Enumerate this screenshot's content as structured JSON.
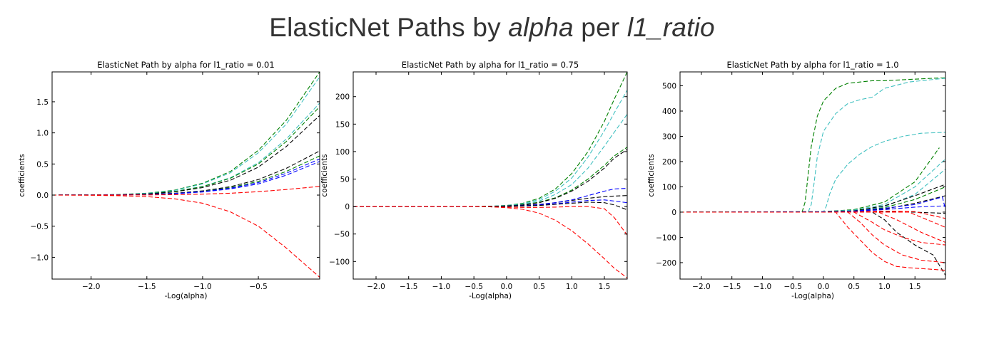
{
  "super_title": {
    "prefix": "ElasticNet Paths by ",
    "italic1": "alpha",
    "middle": " per ",
    "italic2": "l1_ratio"
  },
  "chart_data": [
    {
      "type": "line",
      "title": "ElasticNet Path by alpha for l1_ratio = 0.01",
      "xlabel": "-Log(alpha)",
      "ylabel": "coefficients",
      "xlim": [
        -2.35,
        0.05
      ],
      "ylim": [
        -1.35,
        1.98
      ],
      "xticks": [
        -2.0,
        -1.5,
        -1.0,
        -0.5
      ],
      "xticklabels": [
        "−2.0",
        "−1.5",
        "−1.0",
        "−0.5"
      ],
      "yticks": [
        -1.0,
        -0.5,
        0.0,
        0.5,
        1.0,
        1.5
      ],
      "yticklabels": [
        "−1.0",
        "−0.5",
        "0.0",
        "0.5",
        "1.0",
        "1.5"
      ],
      "x": [
        -2.35,
        -2.0,
        -1.75,
        -1.5,
        -1.25,
        -1.0,
        -0.75,
        -0.5,
        -0.25,
        0.05
      ],
      "series": [
        {
          "color": "#008000",
          "values": [
            0,
            0.003,
            0.01,
            0.03,
            0.08,
            0.19,
            0.38,
            0.72,
            1.2,
            1.98
          ]
        },
        {
          "color": "#40c0c0",
          "values": [
            0,
            0.003,
            0.009,
            0.027,
            0.075,
            0.18,
            0.36,
            0.68,
            1.14,
            1.9
          ]
        },
        {
          "color": "#40c0c0",
          "values": [
            0,
            0.002,
            0.007,
            0.02,
            0.06,
            0.14,
            0.28,
            0.52,
            0.9,
            1.48
          ]
        },
        {
          "color": "#008000",
          "values": [
            0,
            0.002,
            0.007,
            0.02,
            0.058,
            0.135,
            0.27,
            0.5,
            0.86,
            1.42
          ]
        },
        {
          "color": "#000000",
          "values": [
            0,
            0.002,
            0.006,
            0.018,
            0.052,
            0.12,
            0.24,
            0.45,
            0.78,
            1.28
          ]
        },
        {
          "color": "#000000",
          "values": [
            0,
            0.001,
            0.004,
            0.011,
            0.03,
            0.068,
            0.135,
            0.25,
            0.43,
            0.71
          ]
        },
        {
          "color": "#008000",
          "values": [
            0,
            0.001,
            0.0035,
            0.01,
            0.027,
            0.06,
            0.12,
            0.22,
            0.38,
            0.63
          ]
        },
        {
          "color": "#0000ff",
          "values": [
            0,
            0.001,
            0.003,
            0.009,
            0.025,
            0.056,
            0.11,
            0.2,
            0.35,
            0.58
          ]
        },
        {
          "color": "#0000ff",
          "values": [
            0,
            0.001,
            0.003,
            0.008,
            0.022,
            0.05,
            0.1,
            0.18,
            0.32,
            0.54
          ]
        },
        {
          "color": "#ff0000",
          "values": [
            0,
            0,
            0.001,
            0.003,
            0.007,
            0.015,
            0.03,
            0.055,
            0.09,
            0.14
          ]
        },
        {
          "color": "#ff0000",
          "values": [
            0,
            -0.003,
            -0.01,
            -0.025,
            -0.06,
            -0.13,
            -0.27,
            -0.5,
            -0.85,
            -1.32
          ]
        }
      ]
    },
    {
      "type": "line",
      "title": "ElasticNet Path by alpha for l1_ratio = 0.75",
      "xlabel": "-Log(alpha)",
      "ylabel": "coefficients",
      "xlim": [
        -2.35,
        1.85
      ],
      "ylim": [
        -132,
        245
      ],
      "xticks": [
        -2.0,
        -1.5,
        -1.0,
        -0.5,
        0.0,
        0.5,
        1.0,
        1.5
      ],
      "xticklabels": [
        "−2.0",
        "−1.5",
        "−1.0",
        "−0.5",
        "0.0",
        "0.5",
        "1.0",
        "1.5"
      ],
      "yticks": [
        -100,
        -50,
        0,
        50,
        100,
        150,
        200
      ],
      "yticklabels": [
        "−100",
        "−50",
        "0",
        "50",
        "100",
        "150",
        "200"
      ],
      "x": [
        -2.35,
        -0.5,
        -0.25,
        0.0,
        0.25,
        0.5,
        0.75,
        1.0,
        1.25,
        1.5,
        1.65,
        1.85
      ],
      "series": [
        {
          "color": "#008000",
          "values": [
            0,
            0,
            0.5,
            2,
            6,
            15,
            32,
            60,
            100,
            155,
            195,
            245
          ]
        },
        {
          "color": "#40c0c0",
          "values": [
            0,
            0,
            0.5,
            2,
            5,
            13,
            28,
            52,
            90,
            138,
            170,
            212
          ]
        },
        {
          "color": "#40c0c0",
          "values": [
            0,
            0,
            0.4,
            1.5,
            4,
            10,
            22,
            40,
            70,
            110,
            135,
            168
          ]
        },
        {
          "color": "#008000",
          "values": [
            0,
            0,
            0.3,
            1.2,
            3,
            8,
            16,
            30,
            50,
            75,
            92,
            108
          ]
        },
        {
          "color": "#000000",
          "values": [
            0,
            0,
            0.3,
            1,
            3,
            7,
            15,
            28,
            46,
            70,
            88,
            104
          ]
        },
        {
          "color": "#000000",
          "values": [
            0,
            0,
            0.2,
            0.8,
            2,
            4,
            7,
            11,
            15,
            18,
            19,
            20
          ]
        },
        {
          "color": "#0000ff",
          "values": [
            0,
            0,
            0.2,
            0.6,
            1.5,
            3.5,
            7,
            12,
            20,
            28,
            32,
            33
          ]
        },
        {
          "color": "#0000ff",
          "values": [
            0,
            0,
            0.2,
            0.5,
            1.2,
            2.5,
            5,
            8,
            11,
            12,
            10,
            7
          ]
        },
        {
          "color": "#000000",
          "values": [
            0,
            0,
            0.1,
            0.5,
            1,
            2,
            4,
            6,
            8,
            7,
            3,
            -6
          ]
        },
        {
          "color": "#ff0000",
          "values": [
            0,
            0,
            -0.5,
            -1,
            -1.5,
            -1.5,
            -1,
            0,
            0,
            -4,
            -20,
            -52
          ]
        },
        {
          "color": "#ff0000",
          "values": [
            0,
            0,
            -0.5,
            -2,
            -5,
            -12,
            -25,
            -44,
            -68,
            -95,
            -112,
            -130
          ]
        }
      ]
    },
    {
      "type": "line",
      "title": "ElasticNet Path by alpha for l1_ratio = 1.0",
      "xlabel": "-Log(alpha)",
      "ylabel": "coefficients",
      "xlim": [
        -2.35,
        2.0
      ],
      "ylim": [
        -265,
        555
      ],
      "xticks": [
        -2.0,
        -1.5,
        -1.0,
        -0.5,
        0.0,
        0.5,
        1.0,
        1.5
      ],
      "xticklabels": [
        "−2.0",
        "−1.5",
        "−1.0",
        "−0.5",
        "0.0",
        "0.5",
        "1.0",
        "1.5"
      ],
      "yticks": [
        -200,
        -100,
        0,
        100,
        200,
        300,
        400,
        500
      ],
      "yticklabels": [
        "−200",
        "−100",
        "0",
        "100",
        "200",
        "300",
        "400",
        "500"
      ],
      "series": [
        {
          "color": "#008000",
          "x": [
            -2.35,
            -0.35,
            -0.3,
            -0.25,
            -0.2,
            -0.1,
            0.0,
            0.2,
            0.4,
            0.6,
            0.8,
            1.0,
            1.4,
            1.8,
            2.0
          ],
          "values": [
            0,
            0,
            40,
            150,
            260,
            380,
            440,
            490,
            510,
            515,
            520,
            520,
            525,
            530,
            532
          ]
        },
        {
          "color": "#40c0c0",
          "x": [
            -2.35,
            -0.25,
            -0.2,
            -0.15,
            -0.1,
            0.0,
            0.2,
            0.4,
            0.6,
            0.8,
            1.0,
            1.4,
            1.8,
            2.0
          ],
          "values": [
            0,
            0,
            30,
            120,
            220,
            320,
            390,
            430,
            445,
            455,
            490,
            515,
            525,
            530
          ]
        },
        {
          "color": "#40c0c0",
          "x": [
            -2.35,
            0.0,
            0.05,
            0.1,
            0.2,
            0.4,
            0.6,
            0.8,
            1.0,
            1.3,
            1.6,
            2.0
          ],
          "values": [
            0,
            0,
            25,
            70,
            130,
            190,
            230,
            260,
            280,
            300,
            312,
            316
          ]
        },
        {
          "color": "#008000",
          "x": [
            -2.35,
            0.0,
            0.5,
            1.0,
            1.5,
            1.9
          ],
          "values": [
            0,
            2,
            10,
            40,
            120,
            255
          ]
        },
        {
          "color": "#40c0c0",
          "x": [
            -2.35,
            0.0,
            0.5,
            1.0,
            1.5,
            2.0
          ],
          "values": [
            0,
            2,
            8,
            30,
            100,
            210
          ]
        },
        {
          "color": "#40c0c0",
          "x": [
            -2.35,
            0.0,
            0.5,
            1.0,
            1.5,
            2.0
          ],
          "values": [
            0,
            1,
            6,
            22,
            70,
            170
          ]
        },
        {
          "color": "#000000",
          "x": [
            -2.35,
            0.0,
            0.5,
            1.0,
            1.5,
            2.0
          ],
          "values": [
            0,
            1,
            5,
            25,
            65,
            110
          ]
        },
        {
          "color": "#008000",
          "x": [
            -2.35,
            0.0,
            0.5,
            1.0,
            1.5,
            2.0
          ],
          "values": [
            0,
            1,
            4,
            18,
            50,
            100
          ]
        },
        {
          "color": "#000000",
          "x": [
            -2.35,
            0.0,
            0.5,
            1.0,
            1.5,
            2.0
          ],
          "values": [
            0,
            1,
            3,
            12,
            35,
            65
          ]
        },
        {
          "color": "#0000ff",
          "x": [
            -2.35,
            0.0,
            0.5,
            1.0,
            1.5,
            1.95,
            2.0
          ],
          "values": [
            0,
            1,
            4,
            15,
            30,
            60,
            10
          ]
        },
        {
          "color": "#0000ff",
          "x": [
            -2.35,
            0.0,
            0.5,
            1.0,
            1.5,
            2.0
          ],
          "values": [
            0,
            0,
            3,
            10,
            20,
            25
          ]
        },
        {
          "color": "#000000",
          "x": [
            -2.35,
            0.0,
            0.5,
            1.0,
            1.5,
            2.0
          ],
          "values": [
            0,
            0,
            1,
            2,
            0,
            -5
          ]
        },
        {
          "color": "#ff0000",
          "x": [
            -2.35,
            0.0,
            0.5,
            1.0,
            1.5,
            2.0
          ],
          "values": [
            0,
            0,
            1,
            4,
            2,
            -25
          ]
        },
        {
          "color": "#000000",
          "x": [
            -2.35,
            0.8,
            1.0,
            1.2,
            1.5,
            1.8,
            2.0
          ],
          "values": [
            0,
            0,
            -30,
            -80,
            -130,
            -170,
            -250
          ]
        },
        {
          "color": "#ff0000",
          "x": [
            -2.35,
            0.2,
            0.4,
            0.6,
            0.8,
            1.0,
            1.2,
            1.4,
            1.7,
            2.0
          ],
          "values": [
            0,
            0,
            -60,
            -110,
            -160,
            -195,
            -215,
            -220,
            -225,
            -230
          ]
        },
        {
          "color": "#ff0000",
          "x": [
            -2.35,
            0.4,
            0.6,
            0.8,
            1.0,
            1.3,
            1.6,
            2.0
          ],
          "values": [
            0,
            0,
            -40,
            -90,
            -130,
            -170,
            -190,
            -200
          ]
        },
        {
          "color": "#ff0000",
          "x": [
            -2.35,
            0.5,
            0.8,
            1.0,
            1.3,
            1.6,
            2.0
          ],
          "values": [
            0,
            0,
            -40,
            -70,
            -100,
            -120,
            -130
          ]
        },
        {
          "color": "#ff0000",
          "x": [
            -2.35,
            0.9,
            1.2,
            1.6,
            2.0
          ],
          "values": [
            0,
            0,
            -30,
            -80,
            -120
          ]
        },
        {
          "color": "#ff0000",
          "x": [
            -2.35,
            1.4,
            1.7,
            2.0
          ],
          "values": [
            0,
            0,
            -30,
            -60
          ]
        }
      ]
    }
  ]
}
